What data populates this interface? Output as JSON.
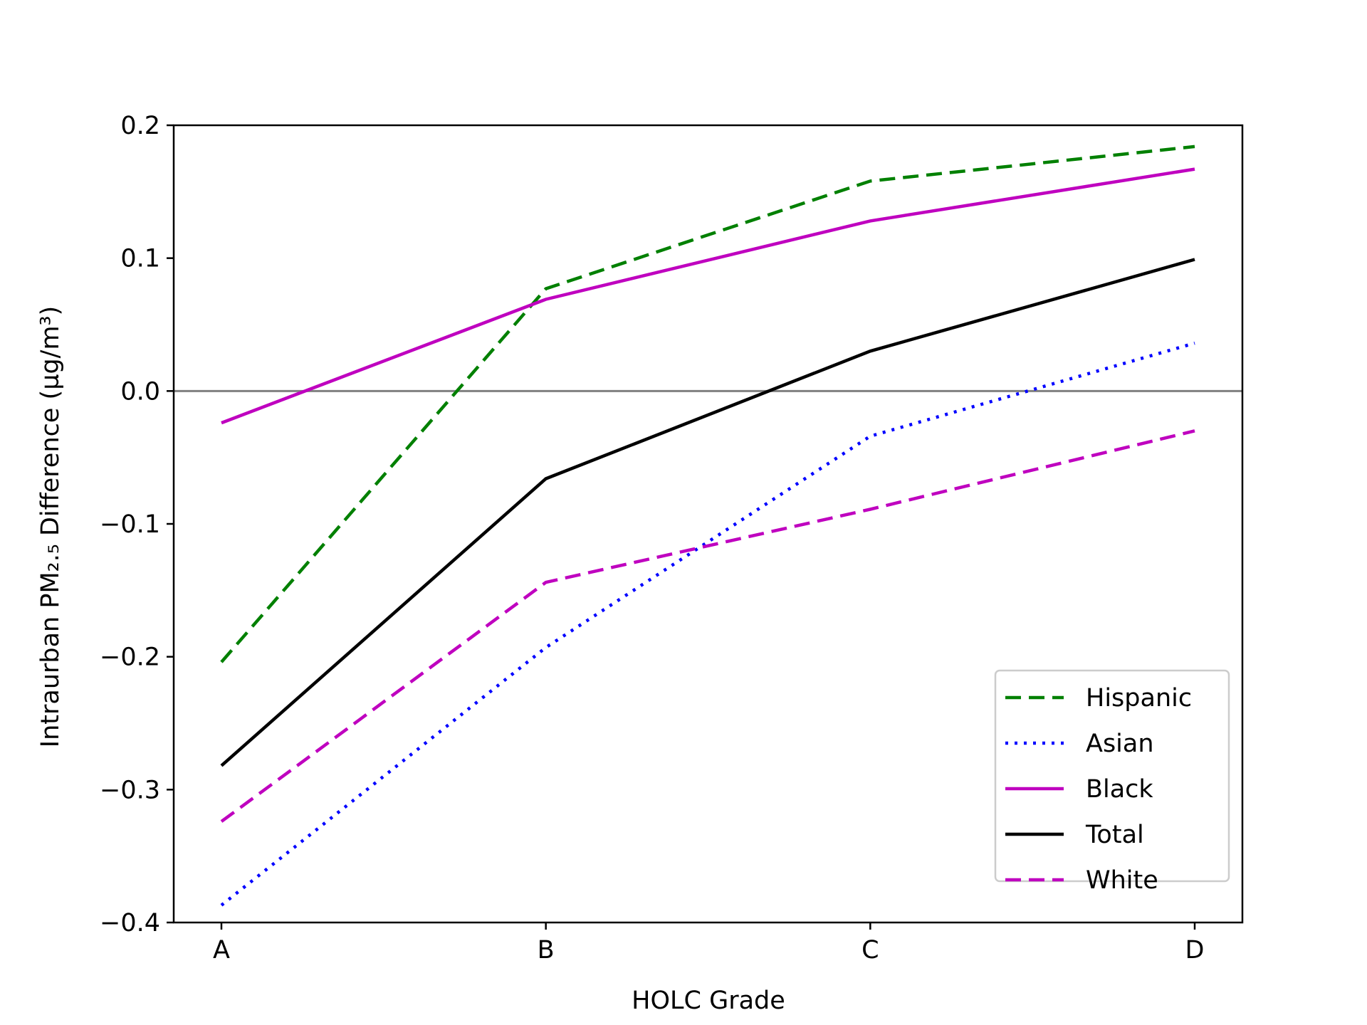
{
  "chart_data": {
    "type": "line",
    "title": "",
    "xlabel": "HOLC Grade",
    "ylabel": "Intraurban PM₂.₅ Difference (µg/m³)",
    "categories": [
      "A",
      "B",
      "C",
      "D"
    ],
    "ylim": [
      -0.4,
      0.2
    ],
    "yticks": [
      -0.4,
      -0.3,
      -0.2,
      -0.1,
      0.0,
      0.1,
      0.2
    ],
    "ytick_labels": [
      "−0.4",
      "−0.3",
      "−0.2",
      "−0.1",
      "0.0",
      "0.1",
      "0.2"
    ],
    "reference_line": {
      "y": 0.0,
      "color": "#808080"
    },
    "grid": false,
    "legend_position": "lower-right",
    "series": [
      {
        "name": "Hispanic",
        "color": "#008000",
        "style": "dashed",
        "values": [
          -0.204,
          0.077,
          0.158,
          0.184
        ]
      },
      {
        "name": "Asian",
        "color": "#0000ff",
        "style": "dotted",
        "values": [
          -0.387,
          -0.193,
          -0.034,
          0.036
        ]
      },
      {
        "name": "Black",
        "color": "#bf00bf",
        "style": "solid",
        "values": [
          -0.024,
          0.069,
          0.128,
          0.167
        ]
      },
      {
        "name": "Total",
        "color": "#000000",
        "style": "solid",
        "values": [
          -0.282,
          -0.066,
          0.03,
          0.099
        ]
      },
      {
        "name": "White",
        "color": "#bf00bf",
        "style": "dashed",
        "values": [
          -0.324,
          -0.144,
          -0.089,
          -0.03
        ]
      }
    ]
  }
}
